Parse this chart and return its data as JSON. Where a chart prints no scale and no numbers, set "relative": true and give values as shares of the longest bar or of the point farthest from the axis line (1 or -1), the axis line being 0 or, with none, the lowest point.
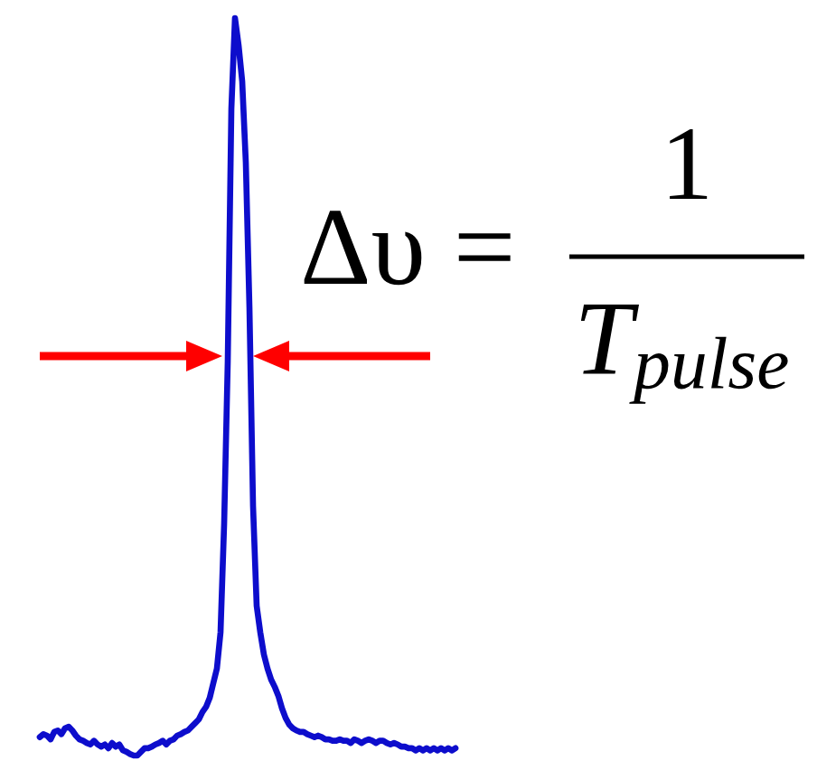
{
  "chart_data": {
    "type": "line",
    "relative": true,
    "categories": [
      null,
      null,
      null,
      null,
      null,
      null,
      null,
      null,
      null,
      null,
      null,
      null,
      null,
      null,
      null,
      null,
      null,
      null,
      null,
      null,
      null,
      null,
      null,
      null,
      null,
      null,
      null,
      null,
      null,
      null,
      null,
      null,
      null,
      null,
      null,
      null,
      null,
      null,
      null,
      null,
      null,
      null,
      null,
      null,
      null,
      null,
      null,
      null,
      null,
      null,
      null,
      null,
      null,
      null,
      null,
      null,
      null,
      null,
      null,
      null,
      null,
      null,
      null,
      null,
      null,
      null,
      null,
      null,
      null,
      null,
      null,
      null,
      null,
      null,
      null,
      null,
      null,
      null,
      null,
      null,
      null,
      null,
      null,
      null,
      null,
      null,
      null,
      null,
      null,
      null,
      null,
      null,
      null,
      null,
      null,
      null,
      null,
      null,
      null,
      null,
      null,
      null,
      null,
      null,
      null,
      null,
      null,
      null,
      null,
      null,
      null,
      null,
      null,
      null,
      null,
      null
    ],
    "series": [
      {
        "color": "#0d0dcc",
        "values": [
          0.025,
          0.029,
          0.027,
          0.022,
          0.032,
          0.034,
          0.029,
          0.037,
          0.039,
          0.034,
          0.027,
          0.022,
          0.02,
          0.017,
          0.015,
          0.02,
          0.015,
          0.012,
          0.015,
          0.01,
          0.017,
          0.012,
          0.015,
          0.007,
          0.005,
          0.002,
          0,
          0,
          0.005,
          0.01,
          0.01,
          0.012,
          0.015,
          0.017,
          0.02,
          0.015,
          0.02,
          0.022,
          0.027,
          0.029,
          0.032,
          0.034,
          0.039,
          0.044,
          0.049,
          0.059,
          0.066,
          0.078,
          0.098,
          0.118,
          0.167,
          0.314,
          0.534,
          0.877,
          1,
          0.963,
          0.914,
          0.804,
          0.608,
          0.338,
          0.203,
          0.167,
          0.137,
          0.118,
          0.103,
          0.093,
          0.081,
          0.064,
          0.051,
          0.042,
          0.037,
          0.034,
          0.032,
          0.032,
          0.029,
          0.027,
          0.025,
          0.027,
          0.025,
          0.022,
          0.022,
          0.02,
          0.02,
          0.022,
          0.02,
          0.02,
          0.017,
          0.022,
          0.02,
          0.017,
          0.02,
          0.022,
          0.02,
          0.017,
          0.02,
          0.02,
          0.017,
          0.015,
          0.017,
          0.015,
          0.012,
          0.012,
          0.01,
          0.01,
          0.007,
          0.01,
          0.007,
          0.01,
          0.007,
          0.01,
          0.007,
          0.01,
          0.007,
          0.01,
          0.007,
          0.01
        ]
      }
    ],
    "annotations": [
      "Δυ =",
      "1",
      "T$_{pulse}$"
    ],
    "line_style": "solid"
  }
}
